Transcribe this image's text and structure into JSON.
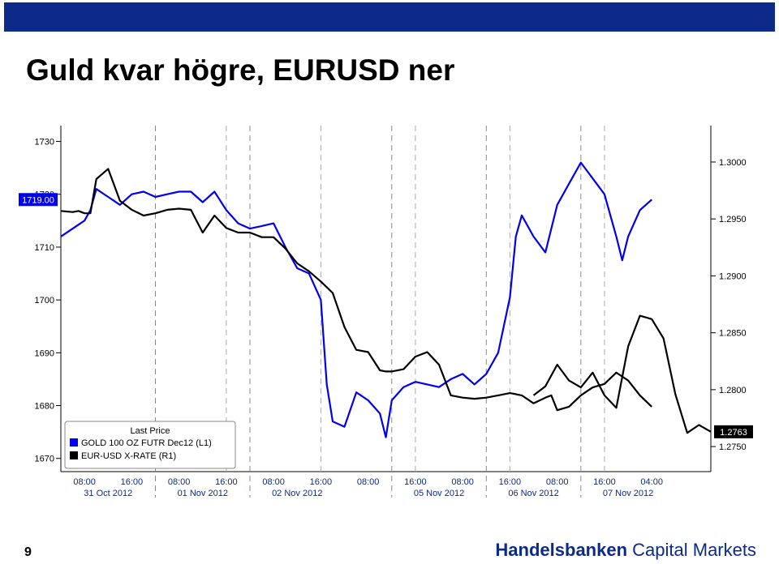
{
  "slide": {
    "title": "Guld kvar högre, EURUSD ner",
    "page_number": "9",
    "brand_bold": "Handelsbanken",
    "brand_rest": "Capital Markets",
    "topbar_color": "#0b2a8a"
  },
  "chart_data": {
    "type": "line",
    "title": "",
    "legend": {
      "heading": "Last Price",
      "position": "bottom-left",
      "entries": [
        {
          "label": "GOLD 100 OZ FUTR Dec12 (L1)",
          "color": "#0000ee"
        },
        {
          "label": "EUR-USD X-RATE (R1)",
          "color": "#000000"
        }
      ]
    },
    "left_axis": {
      "ticks": [
        "1730",
        "1720",
        "1710",
        "1700",
        "1690",
        "1680",
        "1670"
      ],
      "tick_values": [
        1730,
        1720,
        1710,
        1700,
        1690,
        1680,
        1670
      ],
      "range": [
        1667.5,
        1733
      ],
      "last_value_label": "1719.00"
    },
    "right_axis": {
      "ticks": [
        "1.3000",
        "1.2950",
        "1.2900",
        "1.2850",
        "1.2800",
        "1.2750"
      ],
      "tick_values": [
        1.3,
        1.295,
        1.29,
        1.285,
        1.28,
        1.275
      ],
      "range": [
        1.2728,
        1.3032
      ],
      "last_value_label": "1.2763"
    },
    "x_axis": {
      "time_labels": [
        "08:00",
        "16:00",
        "08:00",
        "16:00",
        "08:00",
        "16:00",
        "08:00",
        "16:00",
        "08:00",
        "16:00",
        "08:00",
        "16:00",
        "04:00"
      ],
      "time_positions": [
        0.04,
        0.12,
        0.2,
        0.28,
        0.36,
        0.44,
        0.52,
        0.6,
        0.68,
        0.76,
        0.84,
        0.92,
        1.0
      ],
      "date_labels": [
        "31 Oct 2012",
        "01 Nov 2012",
        "02 Nov 2012",
        "05 Nov 2012",
        "06 Nov 2012",
        "07 Nov 2012"
      ],
      "date_positions": [
        0.08,
        0.24,
        0.4,
        0.64,
        0.8,
        0.96
      ],
      "day_separators": [
        0.16,
        0.32,
        0.56,
        0.72,
        0.88
      ],
      "hour_gridlines": [
        0.28,
        0.44,
        0.6,
        0.76,
        0.92
      ]
    },
    "x_range": [
      0,
      1.1
    ],
    "series": [
      {
        "name": "GOLD 100 OZ FUTR Dec12",
        "axis": "left",
        "color": "#0000ee",
        "x": [
          0,
          0.02,
          0.04,
          0.05,
          0.06,
          0.08,
          0.1,
          0.12,
          0.14,
          0.16,
          0.18,
          0.2,
          0.22,
          0.24,
          0.26,
          0.28,
          0.3,
          0.32,
          0.34,
          0.36,
          0.38,
          0.4,
          0.42,
          0.44,
          0.45,
          0.46,
          0.48,
          0.5,
          0.52,
          0.54,
          0.55,
          0.56,
          0.58,
          0.6,
          0.62,
          0.64,
          0.66,
          0.68,
          0.7,
          0.72,
          0.74,
          0.76,
          0.77,
          0.78,
          0.8,
          0.82,
          0.84,
          0.86,
          0.88,
          0.9,
          0.92,
          0.94,
          0.95,
          0.96,
          0.98,
          1.0
        ],
        "values": [
          1712,
          1713.5,
          1715,
          1717,
          1721,
          1719.5,
          1718,
          1720,
          1720.5,
          1719.5,
          1720,
          1720.5,
          1720.5,
          1718.5,
          1720.5,
          1717,
          1714.5,
          1713.5,
          1714,
          1714.5,
          1710,
          1706,
          1705,
          1700,
          1684,
          1677,
          1676,
          1682.5,
          1681,
          1678.5,
          1674,
          1681,
          1683.5,
          1684.5,
          1684,
          1683.5,
          1685,
          1686,
          1684,
          1686,
          1690,
          1700.5,
          1712,
          1716,
          1712,
          1709,
          1718,
          1722,
          1726,
          1723,
          1720,
          1712,
          1707.5,
          1712,
          1717,
          1719
        ]
      },
      {
        "name": "EUR-USD X-RATE",
        "axis": "right",
        "color": "#000000",
        "x": [
          0,
          0.02,
          0.03,
          0.04,
          0.05,
          0.06,
          0.08,
          0.1,
          0.12,
          0.14,
          0.16,
          0.18,
          0.2,
          0.22,
          0.24,
          0.26,
          0.28,
          0.3,
          0.32,
          0.34,
          0.36,
          0.38,
          0.4,
          0.42,
          0.44,
          0.46,
          0.48,
          0.5,
          0.52,
          0.54,
          0.55,
          0.56,
          0.58,
          0.6,
          0.62,
          0.64,
          0.66,
          0.68,
          0.7,
          0.72,
          0.74,
          0.76,
          0.78,
          0.8,
          0.82,
          0.83,
          0.84,
          0.86,
          0.88,
          0.9,
          0.92,
          0.94,
          0.96,
          0.98,
          1.0
        ],
        "values": [
          1.2957,
          1.2956,
          1.2957,
          1.2955,
          1.2955,
          1.2985,
          1.2994,
          1.2966,
          1.2958,
          1.2953,
          1.2955,
          1.2958,
          1.2959,
          1.2958,
          1.2938,
          1.2953,
          1.2942,
          1.2938,
          1.2938,
          1.2934,
          1.2934,
          1.2924,
          1.2911,
          1.2904,
          1.2895,
          1.2885,
          1.2855,
          1.2835,
          1.2833,
          1.2817,
          1.2816,
          1.2816,
          1.2818,
          1.2829,
          1.2833,
          1.2822,
          1.2795,
          1.2793,
          1.2792,
          1.2793,
          1.2795,
          1.2797,
          1.2795,
          1.2788,
          1.2793,
          1.2795,
          1.2782,
          1.2785,
          1.2795,
          1.2802,
          1.2805,
          1.2815,
          1.2808,
          1.2795,
          1.2785
        ]
      },
      {
        "name": "",
        "axis": "right",
        "color": "#000000",
        "x": [
          0.8,
          0.82,
          0.84,
          0.86,
          0.88,
          0.9,
          0.92,
          0.94,
          0.96,
          0.98,
          1.0,
          1.02,
          1.04,
          1.06,
          1.08,
          1.1
        ],
        "values": [
          1.2795,
          1.2803,
          1.2822,
          1.2808,
          1.2802,
          1.2815,
          1.2795,
          1.2784,
          1.2838,
          1.2865,
          1.2862,
          1.2845,
          1.2796,
          1.2762,
          1.2769,
          1.2763
        ]
      }
    ]
  }
}
